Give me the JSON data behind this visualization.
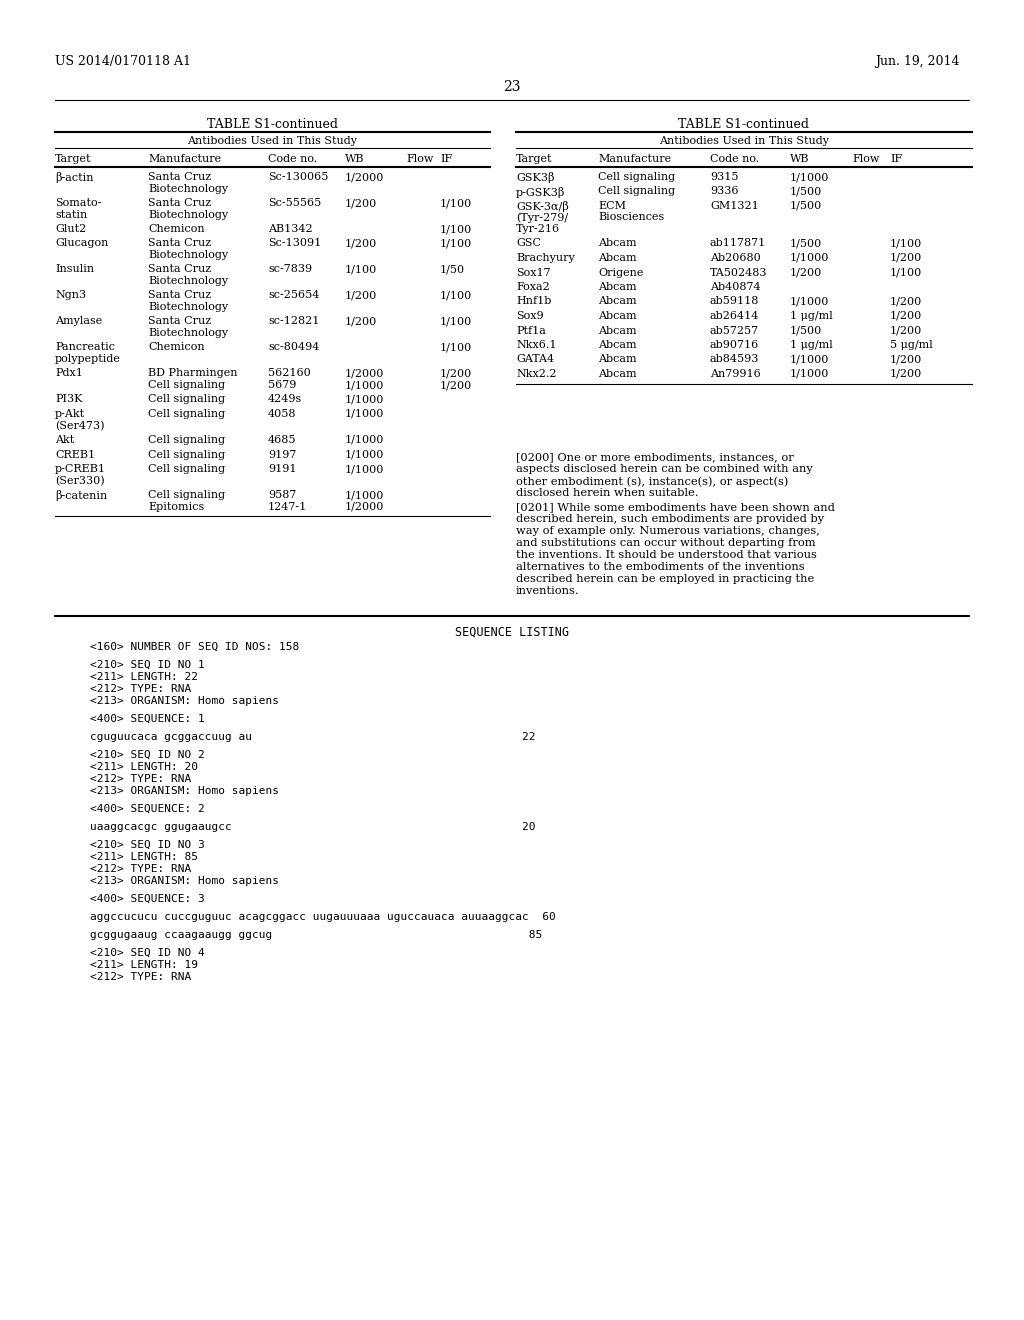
{
  "header_left": "US 2014/0170118 A1",
  "header_right": "Jun. 19, 2014",
  "page_number": "23",
  "left_table_title": "TABLE S1-continued",
  "left_table_subtitle": "Antibodies Used in This Study",
  "left_col_headers": [
    "Target",
    "Manufacture",
    "Code no.",
    "WB",
    "Flow",
    "IF"
  ],
  "left_rows": [
    [
      "β-actin",
      "Santa Cruz\nBiotechnology",
      "Sc-130065",
      "1/2000",
      "",
      ""
    ],
    [
      "Somato-\nstatin",
      "Santa Cruz\nBiotechnology",
      "Sc-55565",
      "1/200",
      "",
      "1/100"
    ],
    [
      "Glut2",
      "Chemicon",
      "AB1342",
      "",
      "",
      "1/100"
    ],
    [
      "Glucagon",
      "Santa Cruz\nBiotechnology",
      "Sc-13091",
      "1/200",
      "",
      "1/100"
    ],
    [
      "Insulin",
      "Santa Cruz\nBiotechnology",
      "sc-7839",
      "1/100",
      "",
      "1/50"
    ],
    [
      "Ngn3",
      "Santa Cruz\nBiotechnology",
      "sc-25654",
      "1/200",
      "",
      "1/100"
    ],
    [
      "Amylase",
      "Santa Cruz\nBiotechnology",
      "sc-12821",
      "1/200",
      "",
      "1/100"
    ],
    [
      "Pancreatic\npolypeptide",
      "Chemicon",
      "sc-80494",
      "",
      "",
      "1/100"
    ],
    [
      "Pdx1",
      "BD Pharmingen\nCell signaling",
      "562160\n5679",
      "1/2000\n1/1000",
      "",
      "1/200\n1/200"
    ],
    [
      "PI3K",
      "Cell signaling",
      "4249s",
      "1/1000",
      "",
      ""
    ],
    [
      "p-Akt\n(Ser473)",
      "Cell signaling",
      "4058",
      "1/1000",
      "",
      ""
    ],
    [
      "Akt",
      "Cell signaling",
      "4685",
      "1/1000",
      "",
      ""
    ],
    [
      "CREB1",
      "Cell signaling",
      "9197",
      "1/1000",
      "",
      ""
    ],
    [
      "p-CREB1\n(Ser330)",
      "Cell signaling",
      "9191",
      "1/1000",
      "",
      ""
    ],
    [
      "β-catenin",
      "Cell signaling\nEpitomics",
      "9587\n1247-1",
      "1/1000\n1/2000",
      "",
      ""
    ]
  ],
  "right_table_title": "TABLE S1-continued",
  "right_table_subtitle": "Antibodies Used in This Study",
  "right_col_headers": [
    "Target",
    "Manufacture",
    "Code no.",
    "WB",
    "Flow",
    "IF"
  ],
  "right_rows": [
    [
      "GSK3β",
      "Cell signaling",
      "9315",
      "1/1000",
      "",
      ""
    ],
    [
      "p-GSK3β",
      "Cell signaling",
      "9336",
      "1/500",
      "",
      ""
    ],
    [
      "GSK-3α/β\n(Tyr-279/\nTyr-216",
      "ECM\nBiosciences",
      "GM1321",
      "1/500",
      "",
      ""
    ],
    [
      "GSC",
      "Abcam",
      "ab117871",
      "1/500",
      "",
      "1/100"
    ],
    [
      "Brachyury",
      "Abcam",
      "Ab20680",
      "1/1000",
      "",
      "1/200"
    ],
    [
      "Sox17",
      "Origene",
      "TA502483",
      "1/200",
      "",
      "1/100"
    ],
    [
      "Foxa2",
      "Abcam",
      "Ab40874",
      "",
      "",
      ""
    ],
    [
      "Hnf1b",
      "Abcam",
      "ab59118",
      "1/1000",
      "",
      "1/200"
    ],
    [
      "Sox9",
      "Abcam",
      "ab26414",
      "1 μg/ml",
      "",
      "1/200"
    ],
    [
      "Ptf1a",
      "Abcam",
      "ab57257",
      "1/500",
      "",
      "1/200"
    ],
    [
      "Nkx6.1",
      "Abcam",
      "ab90716",
      "1 μg/ml",
      "",
      "5 μg/ml"
    ],
    [
      "GATA4",
      "Abcam",
      "ab84593",
      "1/1000",
      "",
      "1/200"
    ],
    [
      "Nkx2.2",
      "Abcam",
      "An79916",
      "1/1000",
      "",
      "1/200"
    ]
  ],
  "paragraph_0200": "[0200]   One or more embodiments, instances, or aspects disclosed herein can be combined with any other embodiment (s), instance(s), or aspect(s) disclosed herein when suitable.",
  "paragraph_0201": "[0201]   While some embodiments have been shown and described herein, such embodiments are provided by way of example only. Numerous variations, changes, and substitutions can occur without departing from the inventions. It should be understood that various alternatives to the embodiments of the inventions described herein can be employed in practicing the inventions.",
  "sequence_listing_title": "SEQUENCE LISTING",
  "sequence_entries": [
    "<160> NUMBER OF SEQ ID NOS: 158",
    "",
    "<210> SEQ ID NO 1",
    "<211> LENGTH: 22",
    "<212> TYPE: RNA",
    "<213> ORGANISM: Homo sapiens",
    "",
    "<400> SEQUENCE: 1",
    "",
    "cguguucaca gcggaccuug au                                        22",
    "",
    "<210> SEQ ID NO 2",
    "<211> LENGTH: 20",
    "<212> TYPE: RNA",
    "<213> ORGANISM: Homo sapiens",
    "",
    "<400> SEQUENCE: 2",
    "",
    "uaaggcacgc ggugaaugcc                                           20",
    "",
    "<210> SEQ ID NO 3",
    "<211> LENGTH: 85",
    "<212> TYPE: RNA",
    "<213> ORGANISM: Homo sapiens",
    "",
    "<400> SEQUENCE: 3",
    "",
    "aggccucucu cuccguguuc acagcggacc uugauuuaaa uguccauaca auuaaggcac  60",
    "",
    "gcggugaaug ccaagaaugg ggcug                                      85",
    "",
    "<210> SEQ ID NO 4",
    "<211> LENGTH: 19",
    "<212> TYPE: RNA"
  ],
  "bg_color": "#ffffff",
  "text_color": "#000000"
}
